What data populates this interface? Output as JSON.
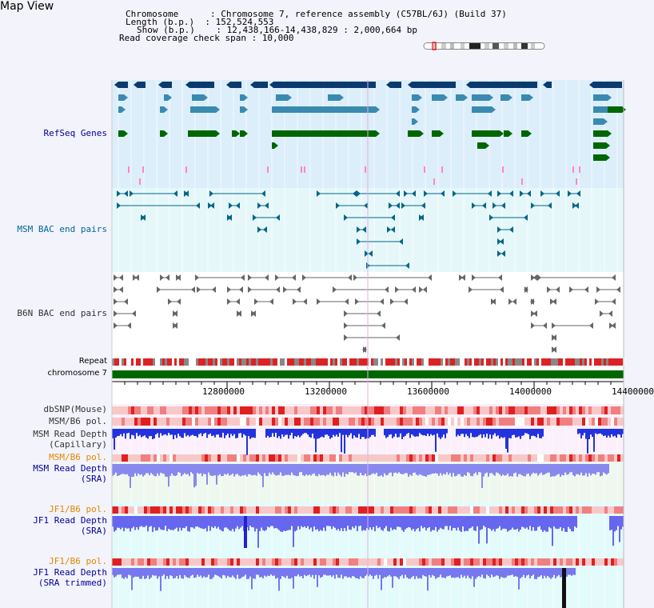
{
  "header": {
    "title": "Map View",
    "info": [
      "Chromosome      : Chromosome 7, reference assembly (C57BL/6J) (Build 37)",
      "Length (b.p.)  : 152,524,553",
      "Show (b.p.)    : 12,438,166-14,438,829 : 2,000,664 bp",
      "Read coverage check span : 10,000"
    ]
  },
  "tracks": {
    "refseq": "RefSeq Genes",
    "msm_bac": "MSM BAC end pairs",
    "b6n_bac": "B6N BAC end pairs",
    "repeat": "Repeat",
    "chromosome": "chromosome 7",
    "dbsnp": "dbSNP(Mouse)",
    "msm_pol": "MSM/B6 pol.",
    "msm_depth_cap_1": "MSM Read Depth",
    "msm_depth_cap_2": "(Capillary)",
    "msm_pol_sra": "MSM/B6 pol.",
    "msm_depth_sra_1": "MSM Read Depth",
    "msm_depth_sra_2": "(SRA)",
    "jf1_pol_1": "JF1/B6 pol.",
    "jf1_depth_1": "JF1 Read Depth",
    "jf1_depth_1b": "(SRA)",
    "jf1_pol_2": "JF1/B6 pol.",
    "jf1_depth_2": "JF1 Read Depth",
    "jf1_depth_2b": "(SRA trimmed)"
  },
  "ruler": {
    "ticks": [
      "12800000",
      "13200000",
      "13600000",
      "14000000",
      "14400000"
    ]
  },
  "colors": {
    "refseq_label": "#000099",
    "msm_label": "#006699",
    "gene_dark": "#0b3a6e",
    "gene_mid": "#3a8ab0",
    "gene_green": "#006600",
    "pink": "#ff88bb",
    "repeat_red": "#dd2222",
    "chrom_green": "#006600",
    "orange_label": "#e08800",
    "blue_label": "#000099"
  }
}
